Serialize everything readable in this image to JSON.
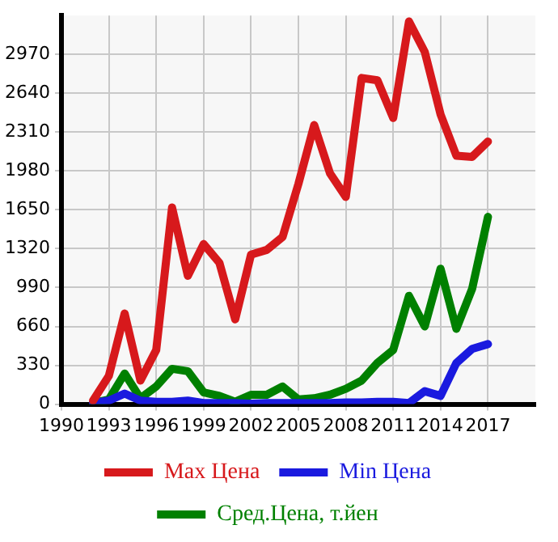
{
  "chart_data": {
    "type": "line",
    "x": [
      1992,
      1993,
      1994,
      1995,
      1996,
      1997,
      1998,
      1999,
      2000,
      2001,
      2002,
      2003,
      2004,
      2005,
      2006,
      2007,
      2008,
      2009,
      2010,
      2011,
      2012,
      2013,
      2014,
      2015,
      2016,
      2017
    ],
    "series": [
      {
        "name": "Max Цена",
        "color": "#d7191c",
        "values": [
          30,
          240,
          770,
          200,
          460,
          1670,
          1090,
          1360,
          1200,
          720,
          1270,
          1310,
          1420,
          1870,
          2370,
          1960,
          1760,
          2770,
          2750,
          2430,
          3250,
          2990,
          2460,
          2110,
          2100,
          2230
        ]
      },
      {
        "name": "Min Цена",
        "color": "#1a1adf",
        "values": [
          10,
          30,
          90,
          30,
          20,
          20,
          30,
          10,
          10,
          10,
          5,
          10,
          10,
          10,
          10,
          10,
          15,
          15,
          20,
          20,
          10,
          110,
          70,
          350,
          470,
          510
        ]
      },
      {
        "name": "Сред.Цена, т.йен",
        "color": "#008000",
        "values": [
          10,
          40,
          260,
          50,
          150,
          300,
          280,
          100,
          70,
          20,
          80,
          80,
          150,
          40,
          50,
          80,
          130,
          200,
          350,
          460,
          920,
          660,
          1150,
          640,
          980,
          1590
        ]
      }
    ],
    "xlim": [
      1990,
      2020
    ],
    "xticks": [
      1990,
      1993,
      1996,
      1999,
      2002,
      2005,
      2008,
      2011,
      2014,
      2017
    ],
    "ylim": [
      0,
      3300
    ],
    "yticks": [
      0,
      330,
      660,
      990,
      1320,
      1650,
      1980,
      2310,
      2640,
      2970
    ],
    "grid": true,
    "legend": "bottom",
    "marker": "none",
    "line_style": "solid"
  }
}
